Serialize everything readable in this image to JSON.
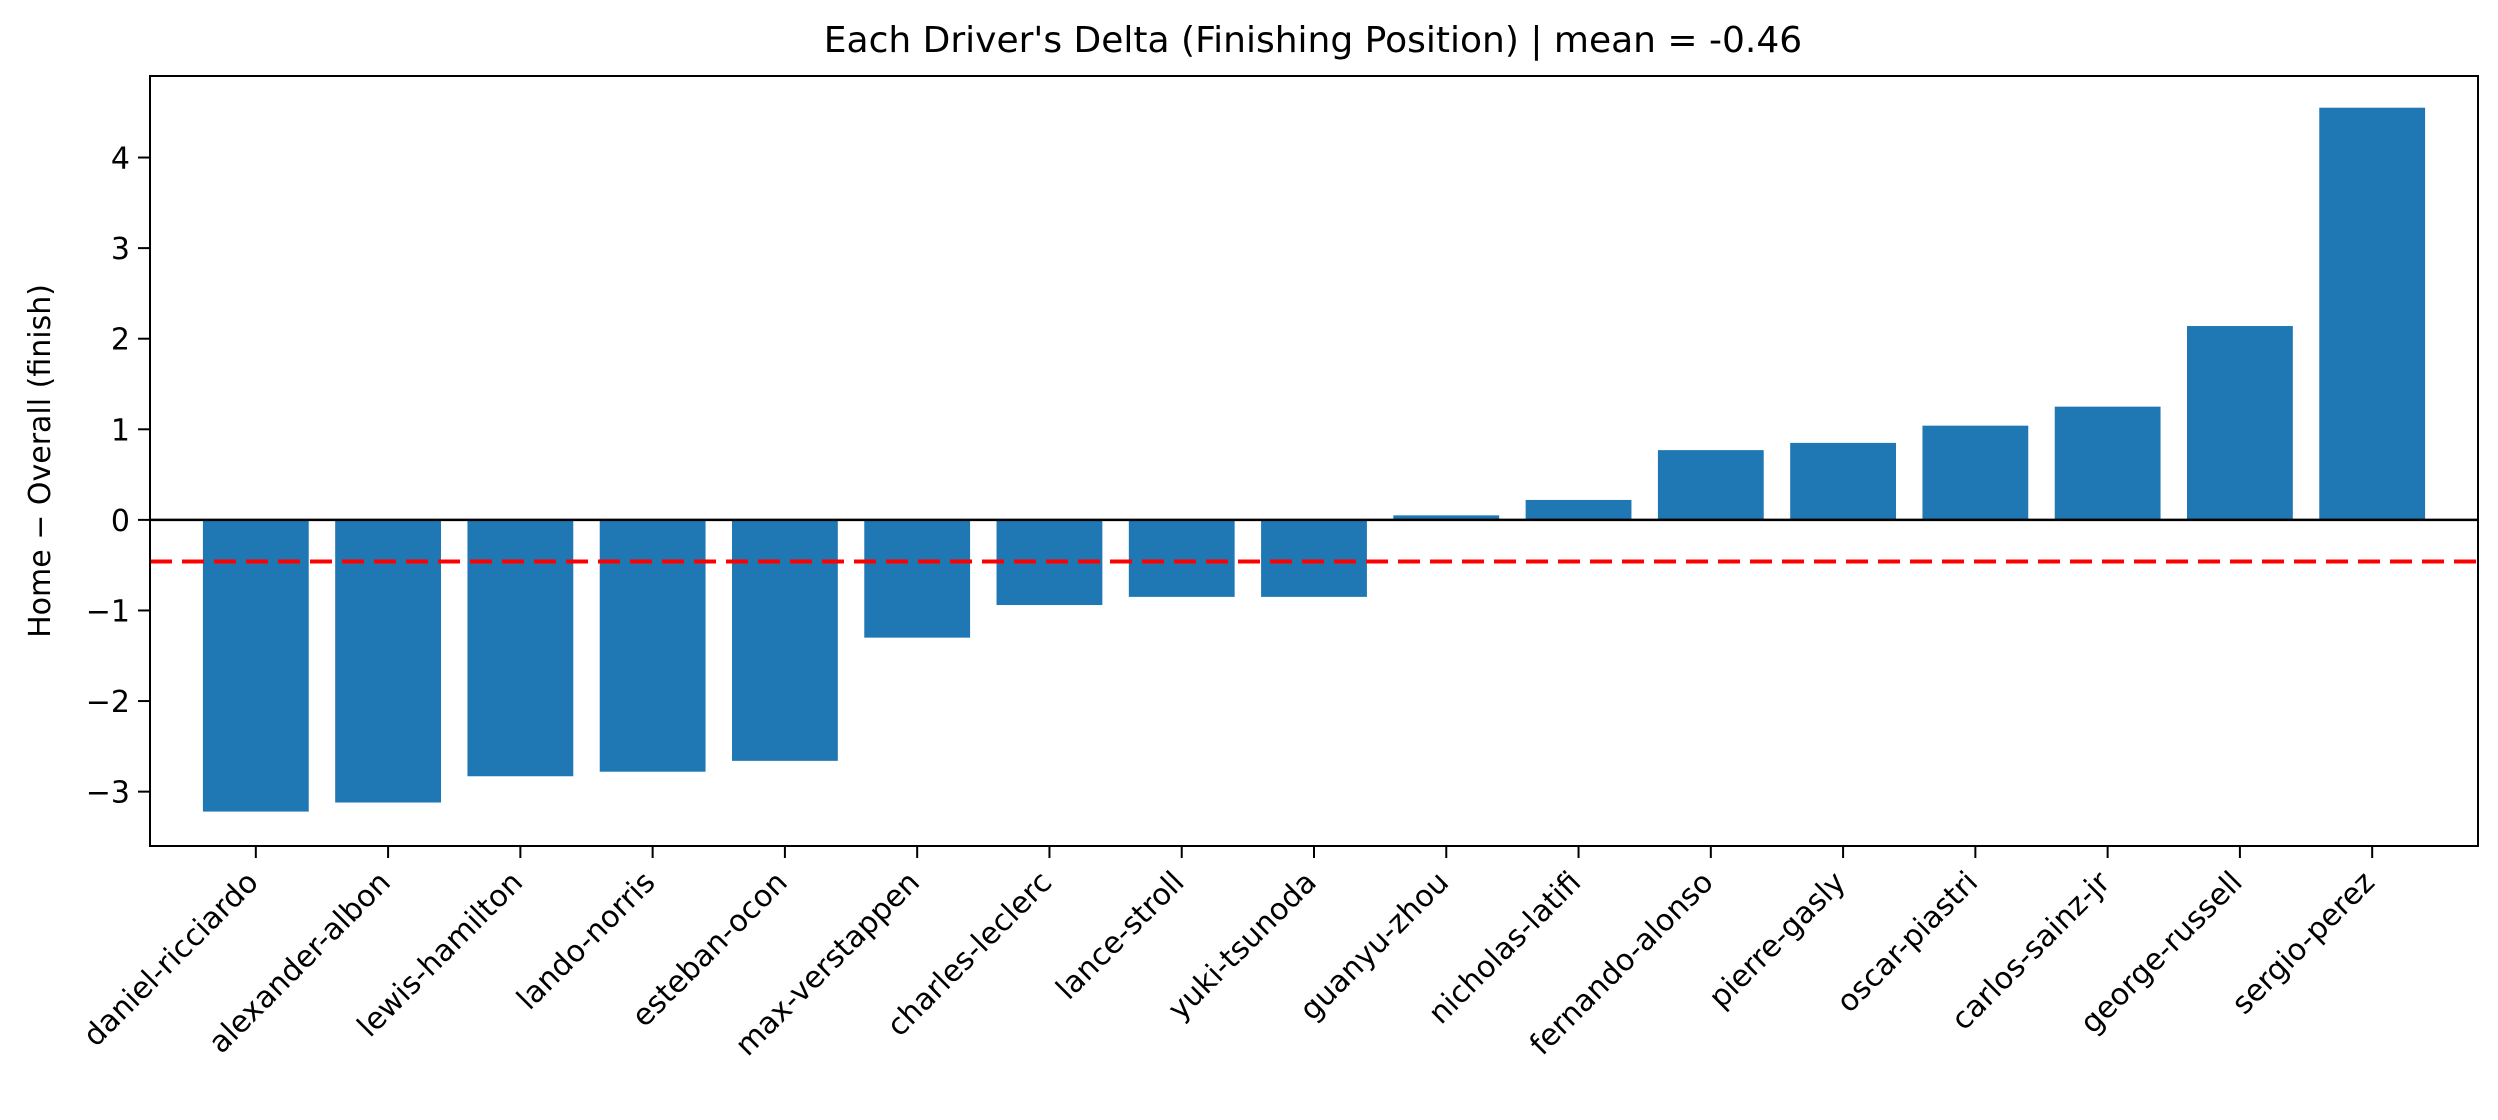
{
  "chart_data": {
    "type": "bar",
    "title": "Each Driver's Delta (Finishing Position) | mean = -0.46",
    "xlabel": "",
    "ylabel": "Home − Overall (finish)",
    "ylim": [
      -3.6,
      4.9
    ],
    "yticks": [
      -3,
      -2,
      -1,
      0,
      1,
      2,
      3,
      4
    ],
    "ytick_labels": [
      "−3",
      "−2",
      "−1",
      "0",
      "1",
      "2",
      "3",
      "4"
    ],
    "categories": [
      "daniel-ricciardo",
      "alexander-albon",
      "lewis-hamilton",
      "lando-norris",
      "esteban-ocon",
      "max-verstappen",
      "charles-leclerc",
      "lance-stroll",
      "yuki-tsunoda",
      "guanyu-zhou",
      "nicholas-latifi",
      "fernando-alonso",
      "pierre-gasly",
      "oscar-piastri",
      "carlos-sainz-jr",
      "george-russell",
      "sergio-perez"
    ],
    "values": [
      -3.22,
      -3.12,
      -2.83,
      -2.78,
      -2.66,
      -1.3,
      -0.94,
      -0.85,
      -0.85,
      0.05,
      0.22,
      0.77,
      0.85,
      1.04,
      1.25,
      2.14,
      4.55
    ],
    "mean": -0.46,
    "grid": false,
    "legend": "none",
    "colors": {
      "bar": "#1f77b4",
      "mean_line": "#ff0000",
      "zero_line": "#000000"
    }
  }
}
